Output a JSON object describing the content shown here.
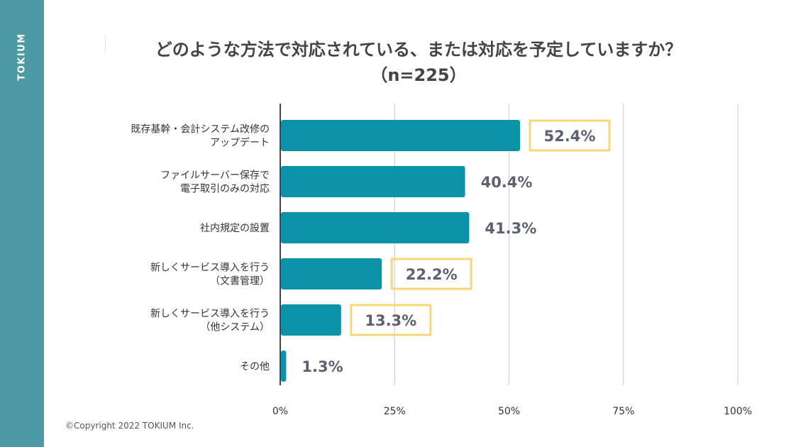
{
  "brand": {
    "logo_text": "TOKIUM"
  },
  "colors": {
    "bar": "#0a93a8",
    "highlight": "#f5d775",
    "label": "#5d6071",
    "grid": "#d9d9d9",
    "axis": "#444444"
  },
  "chart_data": {
    "type": "bar",
    "orientation": "horizontal",
    "title": "どのような方法で対応されている、または対応を予定していますか？",
    "subtitle": "（n=225）",
    "categories": [
      [
        "既存基幹・会計システム改修の",
        "アップデート"
      ],
      [
        "ファイルサーバー保存で",
        "電子取引のみの対応"
      ],
      [
        "社内規定の設置"
      ],
      [
        "新しくサービス導入を行う",
        "（文書管理）"
      ],
      [
        "新しくサービス導入を行う",
        "（他システム）"
      ],
      [
        "その他"
      ]
    ],
    "values": [
      52.4,
      40.4,
      41.3,
      22.2,
      13.3,
      1.3
    ],
    "value_labels": [
      "52.4%",
      "40.4%",
      "41.3%",
      "22.2%",
      "13.3%",
      "1.3%"
    ],
    "highlighted": [
      true,
      false,
      false,
      true,
      true,
      false
    ],
    "xlim": [
      0,
      100
    ],
    "x_ticks": [
      0,
      25,
      50,
      75,
      100
    ],
    "x_tick_labels": [
      "0%",
      "25%",
      "50%",
      "75%",
      "100%"
    ],
    "grid": true
  },
  "footer": {
    "copyright": "©Copyright 2022 TOKIUM Inc."
  }
}
